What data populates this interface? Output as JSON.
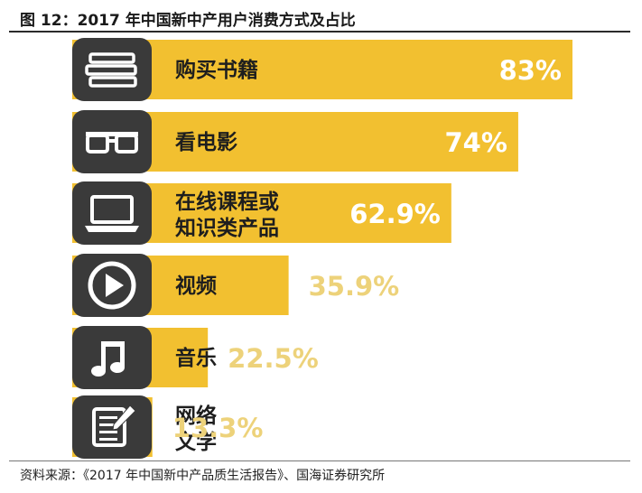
{
  "figure": {
    "title": "图 12：2017 年中国新中产用户消费方式及占比",
    "source": "资料来源：《2017 年中国新中产品质生活报告》、国海证券研究所"
  },
  "colors": {
    "bar": "#F2C030",
    "icon_box": "#3A3A3A",
    "value_light": "#FFFFFF",
    "value_dark": "#EDD27A"
  },
  "chart_data": {
    "type": "bar",
    "orientation": "horizontal",
    "categories": [
      [
        "购买书籍"
      ],
      [
        "看电影"
      ],
      [
        "在线课程或",
        "知识类产品"
      ],
      [
        "视频"
      ],
      [
        "音乐"
      ],
      [
        "网络",
        "文学"
      ]
    ],
    "values": [
      83,
      74,
      62.9,
      35.9,
      22.5,
      13.3
    ],
    "value_labels": [
      "83%",
      "74%",
      "62.9%",
      "35.9%",
      "22.5%",
      "13.3%"
    ],
    "icons": [
      "books-icon",
      "glasses-icon",
      "laptop-icon",
      "play-icon",
      "music-note-icon",
      "notepad-icon"
    ],
    "xlim": [
      0,
      100
    ],
    "grid": false,
    "legend": "none"
  }
}
